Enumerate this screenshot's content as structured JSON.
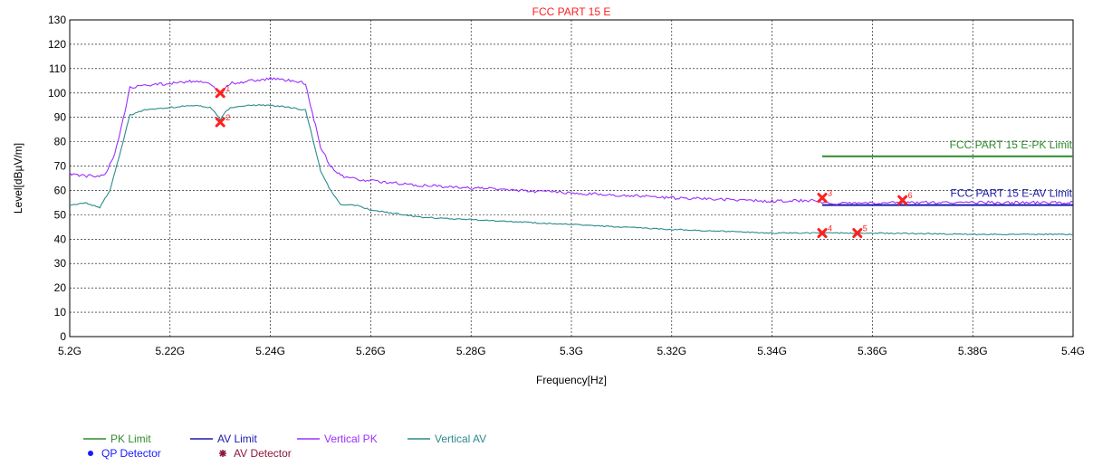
{
  "chart_data": {
    "type": "line",
    "title": "FCC PART 15 E",
    "xlabel": "Frequency[Hz]",
    "ylabel": "Level[dBµV/m]",
    "xlim": [
      5.2,
      5.4
    ],
    "ylim": [
      0,
      130
    ],
    "x_unit": "GHz",
    "x_tick_labels": [
      "5.2G",
      "5.22G",
      "5.24G",
      "5.26G",
      "5.28G",
      "5.3G",
      "5.32G",
      "5.34G",
      "5.36G",
      "5.38G",
      "5.4G"
    ],
    "x_ticks": [
      5.2,
      5.22,
      5.24,
      5.26,
      5.28,
      5.3,
      5.32,
      5.34,
      5.36,
      5.38,
      5.4
    ],
    "y_ticks": [
      0,
      10,
      20,
      30,
      40,
      50,
      60,
      70,
      80,
      90,
      100,
      110,
      120,
      130
    ],
    "grid": true,
    "series": [
      {
        "name": "PK Limit",
        "color": "#2e8b2e",
        "x": [
          5.35,
          5.4
        ],
        "y": [
          74,
          74
        ]
      },
      {
        "name": "AV Limit",
        "color": "#1a1aaa",
        "x": [
          5.35,
          5.4
        ],
        "y": [
          54,
          54
        ]
      },
      {
        "name": "Vertical PK",
        "color": "#9b30ff",
        "x": [
          5.2,
          5.203,
          5.207,
          5.209,
          5.211,
          5.212,
          5.215,
          5.22,
          5.225,
          5.228,
          5.229,
          5.23,
          5.231,
          5.232,
          5.236,
          5.24,
          5.244,
          5.247,
          5.248,
          5.25,
          5.252,
          5.254,
          5.256,
          5.26,
          5.27,
          5.28,
          5.3,
          5.32,
          5.34,
          5.349,
          5.35,
          5.37,
          5.39,
          5.4
        ],
        "y": [
          67,
          66,
          66,
          75,
          92,
          102,
          103,
          104,
          105,
          104,
          102,
          100,
          102,
          104,
          105,
          106,
          105,
          104,
          95,
          78,
          70,
          66,
          65,
          64,
          62,
          61,
          59,
          57,
          55.5,
          56,
          54.5,
          55,
          55,
          55
        ]
      },
      {
        "name": "Vertical AV",
        "color": "#2e8b8b",
        "x": [
          5.2,
          5.203,
          5.206,
          5.208,
          5.21,
          5.212,
          5.215,
          5.22,
          5.225,
          5.228,
          5.229,
          5.23,
          5.231,
          5.232,
          5.236,
          5.24,
          5.244,
          5.247,
          5.248,
          5.25,
          5.252,
          5.254,
          5.257,
          5.26,
          5.27,
          5.28,
          5.3,
          5.32,
          5.34,
          5.36,
          5.38,
          5.4
        ],
        "y": [
          54,
          55,
          53,
          60,
          75,
          91,
          93,
          94,
          95,
          94,
          92,
          89,
          92,
          94,
          95,
          95,
          94,
          93,
          85,
          68,
          60,
          54,
          54,
          52,
          49,
          48,
          46,
          44,
          42.5,
          42.5,
          42,
          42
        ]
      }
    ],
    "markers": [
      {
        "label": "1",
        "x": 5.23,
        "y": 100
      },
      {
        "label": "2",
        "x": 5.23,
        "y": 88
      },
      {
        "label": "3",
        "x": 5.35,
        "y": 57
      },
      {
        "label": "4",
        "x": 5.35,
        "y": 42.5
      },
      {
        "label": "5",
        "x": 5.357,
        "y": 42.5
      },
      {
        "label": "6",
        "x": 5.366,
        "y": 56
      }
    ],
    "marker_color": "#ff2020",
    "limit_labels": [
      {
        "text": "FCC PART 15 E-PK Limit",
        "color": "#2e8b2e"
      },
      {
        "text": "FCC PART 15 E-AV Limit",
        "color": "#1a1aaa"
      }
    ],
    "legend": {
      "position": "bottom-left",
      "line_items": [
        {
          "label": "PK Limit",
          "color": "#2e8b2e"
        },
        {
          "label": "AV Limit",
          "color": "#1a1aaa"
        },
        {
          "label": "Vertical PK",
          "color": "#9b30ff"
        },
        {
          "label": "Vertical AV",
          "color": "#2e8b8b"
        }
      ],
      "symbol_items": [
        {
          "label": "QP Detector",
          "color": "#1a1aff",
          "symbol": "dot"
        },
        {
          "label": "AV Detector",
          "color": "#8b1a3a",
          "symbol": "star"
        }
      ]
    }
  }
}
